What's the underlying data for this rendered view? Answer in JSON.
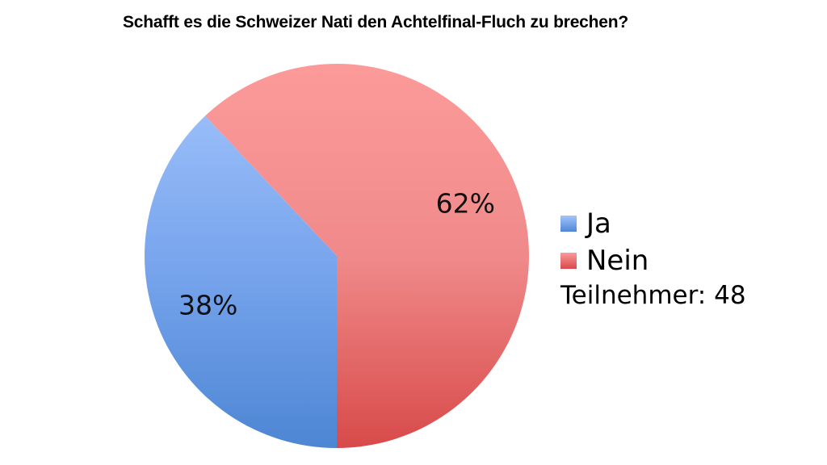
{
  "chart_data": {
    "type": "pie",
    "title": "Schafft es die Schweizer Nati den Achtelfinal-Fluch zu brechen?",
    "slices": [
      {
        "label": "Ja",
        "value": 38,
        "display": "38%",
        "color": "#7aa6ee",
        "color_light": "#a3c5fc",
        "color_dark": "#4d86d4"
      },
      {
        "label": "Nein",
        "value": 62,
        "display": "62%",
        "color": "#f08a8a",
        "color_light": "#fc9a9a",
        "color_dark": "#d84a4a"
      }
    ],
    "legend_position": "right",
    "note": "Teilnehmer: 48"
  }
}
